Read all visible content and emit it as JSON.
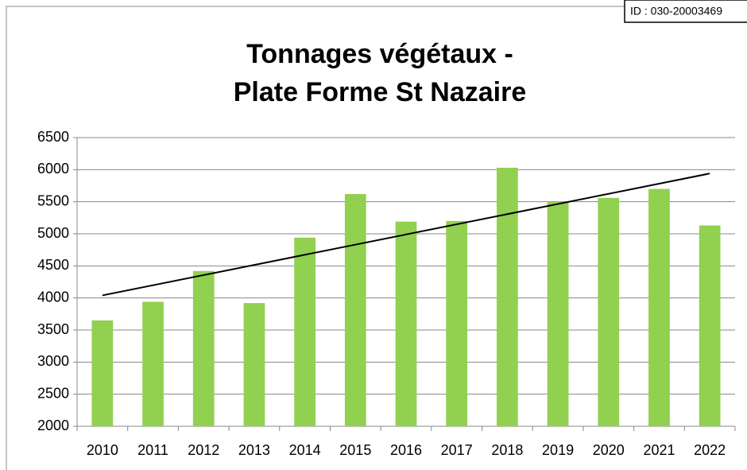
{
  "id_label": "ID : 030-20003469",
  "chart_data": {
    "type": "bar",
    "title_lines": [
      "Tonnages végétaux -",
      "Plate Forme St Nazaire"
    ],
    "categories": [
      "2010",
      "2011",
      "2012",
      "2013",
      "2014",
      "2015",
      "2016",
      "2017",
      "2018",
      "2019",
      "2020",
      "2021",
      "2022"
    ],
    "values": [
      3650,
      3940,
      4420,
      3920,
      4940,
      5620,
      5190,
      5200,
      6030,
      5500,
      5560,
      5700,
      5130
    ],
    "color": "#92d050",
    "trend_values": [
      4040,
      5940
    ],
    "trend_color": "#000000",
    "ylim": [
      2000,
      6500
    ],
    "yticks": [
      2000,
      2500,
      3000,
      3500,
      4000,
      4500,
      5000,
      5500,
      6000,
      6500
    ],
    "grid": true
  }
}
